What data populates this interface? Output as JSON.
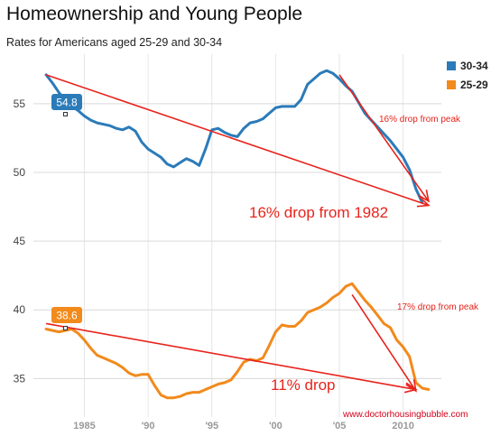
{
  "chart_data": {
    "type": "line",
    "title": "Homeownership and Young People",
    "subtitle": "Rates for Americans aged 25-29 and 30-34",
    "x_tick_labels": [
      {
        "year": 1985,
        "label": "1985"
      },
      {
        "year": 1990,
        "label": "'90"
      },
      {
        "year": 1995,
        "label": "'95"
      },
      {
        "year": 2000,
        "label": "'00"
      },
      {
        "year": 2005,
        "label": "'05"
      },
      {
        "year": 2010,
        "label": "2010"
      }
    ],
    "y_ticks": [
      35,
      40,
      45,
      50,
      55
    ],
    "xlim": [
      1981,
      2013
    ],
    "ylim": [
      32.2,
      58.6
    ],
    "grid": true,
    "legend_position": "top-right",
    "series": [
      {
        "name": "30-34",
        "color": "#2b7bb9",
        "points": [
          [
            1982,
            57.1
          ],
          [
            1982.5,
            56.5
          ],
          [
            1983,
            55.8
          ],
          [
            1983.5,
            55.3
          ],
          [
            1984,
            54.8
          ],
          [
            1984.5,
            54.5
          ],
          [
            1985,
            54.1
          ],
          [
            1985.5,
            53.8
          ],
          [
            1986,
            53.6
          ],
          [
            1986.5,
            53.5
          ],
          [
            1987,
            53.4
          ],
          [
            1987.5,
            53.2
          ],
          [
            1988,
            53.1
          ],
          [
            1988.5,
            53.3
          ],
          [
            1989,
            53.0
          ],
          [
            1989.5,
            52.2
          ],
          [
            1990,
            51.7
          ],
          [
            1990.5,
            51.4
          ],
          [
            1991,
            51.1
          ],
          [
            1991.5,
            50.6
          ],
          [
            1992,
            50.4
          ],
          [
            1992.5,
            50.7
          ],
          [
            1993,
            51.0
          ],
          [
            1993.5,
            50.8
          ],
          [
            1994,
            50.5
          ],
          [
            1994.5,
            51.7
          ],
          [
            1995,
            53.1
          ],
          [
            1995.5,
            53.2
          ],
          [
            1996,
            52.9
          ],
          [
            1996.5,
            52.7
          ],
          [
            1997,
            52.6
          ],
          [
            1997.5,
            53.2
          ],
          [
            1998,
            53.6
          ],
          [
            1998.5,
            53.7
          ],
          [
            1999,
            53.9
          ],
          [
            1999.5,
            54.3
          ],
          [
            2000,
            54.7
          ],
          [
            2000.5,
            54.8
          ],
          [
            2001,
            54.8
          ],
          [
            2001.5,
            54.8
          ],
          [
            2002,
            55.3
          ],
          [
            2002.5,
            56.4
          ],
          [
            2003,
            56.8
          ],
          [
            2003.5,
            57.2
          ],
          [
            2004,
            57.4
          ],
          [
            2004.5,
            57.2
          ],
          [
            2005,
            56.8
          ],
          [
            2005.5,
            56.3
          ],
          [
            2006,
            55.9
          ],
          [
            2006.5,
            55.1
          ],
          [
            2007,
            54.3
          ],
          [
            2007.5,
            53.8
          ],
          [
            2008,
            53.3
          ],
          [
            2008.5,
            52.8
          ],
          [
            2009,
            52.3
          ],
          [
            2009.5,
            51.7
          ],
          [
            2010,
            51.1
          ],
          [
            2010.5,
            50.2
          ],
          [
            2011,
            48.8
          ],
          [
            2011.5,
            47.8
          ]
        ],
        "tooltip": {
          "year": 1984,
          "label": "54.8"
        }
      },
      {
        "name": "25-29",
        "color": "#f28a1c",
        "points": [
          [
            1982,
            38.6
          ],
          [
            1982.5,
            38.5
          ],
          [
            1983,
            38.4
          ],
          [
            1983.5,
            38.5
          ],
          [
            1984,
            38.6
          ],
          [
            1984.5,
            38.3
          ],
          [
            1985,
            37.8
          ],
          [
            1985.5,
            37.2
          ],
          [
            1986,
            36.7
          ],
          [
            1986.5,
            36.5
          ],
          [
            1987,
            36.3
          ],
          [
            1987.5,
            36.1
          ],
          [
            1988,
            35.8
          ],
          [
            1988.5,
            35.4
          ],
          [
            1989,
            35.2
          ],
          [
            1989.5,
            35.3
          ],
          [
            1990,
            35.3
          ],
          [
            1990.5,
            34.5
          ],
          [
            1991,
            33.8
          ],
          [
            1991.5,
            33.6
          ],
          [
            1992,
            33.6
          ],
          [
            1992.5,
            33.7
          ],
          [
            1993,
            33.9
          ],
          [
            1993.5,
            34.0
          ],
          [
            1994,
            34.0
          ],
          [
            1994.5,
            34.2
          ],
          [
            1995,
            34.4
          ],
          [
            1995.5,
            34.6
          ],
          [
            1996,
            34.7
          ],
          [
            1996.5,
            34.9
          ],
          [
            1997,
            35.5
          ],
          [
            1997.5,
            36.2
          ],
          [
            1998,
            36.4
          ],
          [
            1998.5,
            36.3
          ],
          [
            1999,
            36.5
          ],
          [
            1999.5,
            37.4
          ],
          [
            2000,
            38.4
          ],
          [
            2000.5,
            38.9
          ],
          [
            2001,
            38.8
          ],
          [
            2001.5,
            38.8
          ],
          [
            2002,
            39.2
          ],
          [
            2002.5,
            39.8
          ],
          [
            2003,
            40.0
          ],
          [
            2003.5,
            40.2
          ],
          [
            2004,
            40.5
          ],
          [
            2004.5,
            40.9
          ],
          [
            2005,
            41.2
          ],
          [
            2005.5,
            41.7
          ],
          [
            2006,
            41.9
          ],
          [
            2006.5,
            41.3
          ],
          [
            2007,
            40.7
          ],
          [
            2007.5,
            40.2
          ],
          [
            2008,
            39.6
          ],
          [
            2008.5,
            39.0
          ],
          [
            2009,
            38.7
          ],
          [
            2009.5,
            37.8
          ],
          [
            2010,
            37.3
          ],
          [
            2010.5,
            36.6
          ],
          [
            2011,
            34.7
          ],
          [
            2011.5,
            34.3
          ],
          [
            2012,
            34.2
          ]
        ],
        "tooltip": {
          "year": 1984,
          "label": "38.6"
        }
      }
    ],
    "annotations": {
      "top_drop_label": "16% drop from 1982",
      "top_peak_label": "16% drop from peak",
      "bottom_drop_label": "11% drop",
      "bottom_peak_label": "17% drop from peak",
      "source": "www.doctorhousingbubble.com",
      "arrow_color": "#e8231b",
      "arrows": [
        {
          "from": [
            1982,
            57.1
          ],
          "to": [
            2012,
            47.6
          ]
        },
        {
          "from": [
            2005,
            57.1
          ],
          "to": [
            2012,
            47.9
          ]
        },
        {
          "from": [
            1982,
            39.0
          ],
          "to": [
            2011,
            34.2
          ]
        },
        {
          "from": [
            2006,
            41.1
          ],
          "to": [
            2011,
            34.1
          ]
        }
      ]
    }
  }
}
